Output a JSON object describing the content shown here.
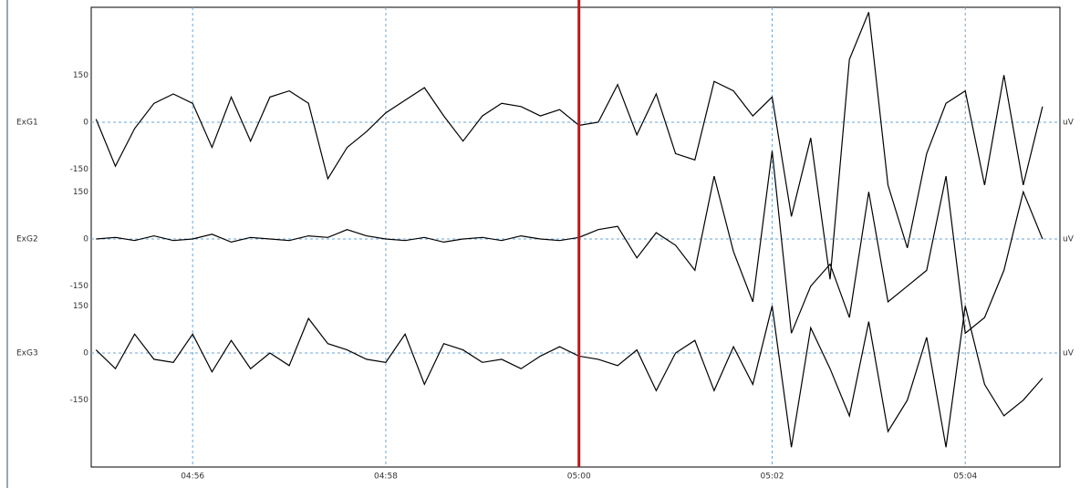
{
  "chart_data": {
    "type": "line",
    "x": [
      295.0,
      295.2,
      295.4,
      295.6,
      295.8,
      296.0,
      296.2,
      296.4,
      296.6,
      296.8,
      297.0,
      297.2,
      297.4,
      297.6,
      297.8,
      298.0,
      298.2,
      298.4,
      298.6,
      298.8,
      299.0,
      299.2,
      299.4,
      299.6,
      299.8,
      300.0,
      300.2,
      300.4,
      300.6,
      300.8,
      301.0,
      301.2,
      301.4,
      301.6,
      301.8,
      302.0,
      302.2,
      302.4,
      302.6,
      302.8,
      303.0,
      303.2,
      303.4,
      303.6,
      303.8,
      304.0,
      304.2,
      304.4,
      304.6,
      304.8
    ],
    "xlim": [
      294.95,
      304.98
    ],
    "xticks": [
      {
        "value": 296,
        "label": "04:56"
      },
      {
        "value": 298,
        "label": "04:58"
      },
      {
        "value": 300,
        "label": "05:00"
      },
      {
        "value": 302,
        "label": "05:02"
      },
      {
        "value": 304,
        "label": "05:04"
      }
    ],
    "cursor": 300,
    "unit": "uV",
    "grid": true,
    "series": [
      {
        "name": "ExG1",
        "color": "#000000",
        "ylim": [
          -180,
          180
        ],
        "yticks": [
          -150,
          0,
          150
        ],
        "values": [
          10,
          -140,
          -20,
          60,
          90,
          60,
          -80,
          80,
          -60,
          80,
          100,
          60,
          -180,
          -80,
          -30,
          30,
          70,
          110,
          20,
          -60,
          20,
          60,
          50,
          20,
          40,
          -10,
          0,
          120,
          -40,
          90,
          -100,
          -120,
          130,
          100,
          20,
          80,
          -300,
          -50,
          -500,
          200,
          350,
          -200,
          -400,
          -100,
          60,
          100,
          -200,
          150,
          -200,
          50
        ]
      },
      {
        "name": "ExG2",
        "color": "#000000",
        "ylim": [
          -180,
          180
        ],
        "yticks": [
          -150,
          0,
          150
        ],
        "values": [
          0,
          5,
          -5,
          10,
          -5,
          0,
          15,
          -10,
          5,
          0,
          -5,
          10,
          5,
          30,
          10,
          0,
          -5,
          5,
          -10,
          0,
          5,
          -5,
          10,
          0,
          -5,
          5,
          30,
          40,
          -60,
          20,
          -20,
          -100,
          200,
          -40,
          -200,
          280,
          -300,
          -150,
          -80,
          -250,
          150,
          -200,
          -150,
          -100,
          200,
          -300,
          -250,
          -100,
          150,
          0
        ]
      },
      {
        "name": "ExG3",
        "color": "#000000",
        "ylim": [
          -180,
          180
        ],
        "yticks": [
          -150,
          0,
          150
        ],
        "values": [
          10,
          -50,
          60,
          -20,
          -30,
          60,
          -60,
          40,
          -50,
          0,
          -40,
          110,
          30,
          10,
          -20,
          -30,
          60,
          -100,
          30,
          10,
          -30,
          -20,
          -50,
          -10,
          20,
          -10,
          -20,
          -40,
          10,
          -120,
          0,
          40,
          -120,
          20,
          -100,
          150,
          -300,
          80,
          -50,
          -200,
          100,
          -250,
          -150,
          50,
          -300,
          150,
          -100,
          -200,
          -150,
          -80
        ]
      }
    ]
  }
}
